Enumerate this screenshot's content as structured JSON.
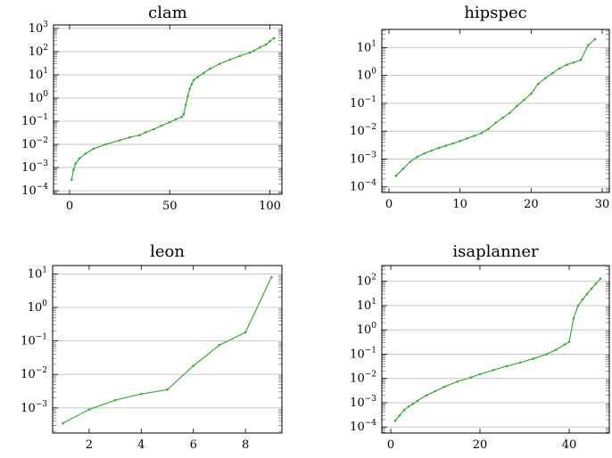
{
  "colors": {
    "series": "#33b033",
    "grid": "#bdbdbd",
    "axis": "#000000"
  },
  "chart_data": [
    {
      "type": "line",
      "title": "clam",
      "xlabel": "",
      "ylabel": "",
      "yscale": "log",
      "grid": "horizontal major",
      "xlim": [
        -8,
        106
      ],
      "ylim_exp": [
        -4.15,
        3.15
      ],
      "x_ticks": [
        0,
        50,
        100
      ],
      "y_ticks_exp": [
        -4,
        -3,
        -2,
        -1,
        0,
        1,
        2,
        3
      ],
      "x": [
        1,
        2,
        3,
        5,
        8,
        12,
        18,
        25,
        30,
        35,
        38,
        42,
        46,
        50,
        53,
        56,
        57,
        58,
        59,
        60,
        61,
        62,
        64,
        67,
        70,
        75,
        80,
        85,
        90,
        92,
        95,
        98,
        100,
        102
      ],
      "y": [
        0.0003,
        0.0008,
        0.0015,
        0.0025,
        0.004,
        0.0065,
        0.01,
        0.015,
        0.02,
        0.025,
        0.033,
        0.045,
        0.065,
        0.09,
        0.12,
        0.15,
        0.2,
        0.5,
        1.2,
        2.5,
        4,
        6,
        8,
        12,
        18,
        30,
        45,
        65,
        90,
        110,
        150,
        200,
        280,
        380
      ]
    },
    {
      "type": "line",
      "title": "hipspec",
      "xlabel": "",
      "ylabel": "",
      "yscale": "log",
      "grid": "horizontal major",
      "xlim": [
        -1,
        31
      ],
      "ylim_exp": [
        -4.2,
        1.65
      ],
      "x_ticks": [
        0,
        10,
        20,
        30
      ],
      "y_ticks_exp": [
        -4,
        -3,
        -2,
        -1,
        0,
        1
      ],
      "x": [
        1,
        2,
        3,
        4,
        5,
        6,
        7,
        8,
        9,
        10,
        11,
        12,
        13,
        14,
        15,
        16,
        17,
        18,
        19,
        20,
        21,
        22,
        23,
        24,
        25,
        26,
        27,
        28,
        29
      ],
      "y": [
        0.00025,
        0.00045,
        0.0008,
        0.0012,
        0.0016,
        0.002,
        0.0025,
        0.003,
        0.0036,
        0.0044,
        0.0055,
        0.0068,
        0.0085,
        0.012,
        0.02,
        0.03,
        0.045,
        0.08,
        0.13,
        0.22,
        0.5,
        0.8,
        1.2,
        1.8,
        2.4,
        2.9,
        3.6,
        12,
        20
      ]
    },
    {
      "type": "line",
      "title": "leon",
      "xlabel": "",
      "ylabel": "",
      "yscale": "log",
      "grid": "horizontal major",
      "xlim": [
        0.6,
        9.4
      ],
      "ylim_exp": [
        -3.75,
        1.25
      ],
      "x_ticks": [
        2,
        4,
        6,
        8
      ],
      "y_ticks_exp": [
        -3,
        -2,
        -1,
        0,
        1
      ],
      "x": [
        1,
        2,
        3,
        4,
        5,
        6,
        7,
        8,
        9
      ],
      "y": [
        0.00035,
        0.0009,
        0.0017,
        0.0026,
        0.0035,
        0.018,
        0.075,
        0.18,
        8
      ]
    },
    {
      "type": "line",
      "title": "isaplanner",
      "xlabel": "",
      "ylabel": "",
      "yscale": "log",
      "grid": "horizontal major",
      "xlim": [
        -2,
        49
      ],
      "ylim_exp": [
        -4.25,
        2.65
      ],
      "x_ticks": [
        0,
        20,
        40
      ],
      "y_ticks_exp": [
        -4,
        -3,
        -2,
        -1,
        0,
        1,
        2
      ],
      "x": [
        1,
        2,
        3,
        4,
        5,
        6,
        8,
        10,
        12,
        15,
        18,
        20,
        23,
        26,
        29,
        32,
        35,
        37,
        39,
        40,
        41,
        42,
        43,
        44,
        45,
        46,
        47
      ],
      "y": [
        0.00018,
        0.0003,
        0.0005,
        0.0007,
        0.0009,
        0.0012,
        0.002,
        0.003,
        0.0045,
        0.0075,
        0.011,
        0.015,
        0.022,
        0.032,
        0.045,
        0.065,
        0.1,
        0.15,
        0.25,
        0.32,
        3,
        10,
        18,
        30,
        50,
        80,
        130
      ]
    }
  ]
}
